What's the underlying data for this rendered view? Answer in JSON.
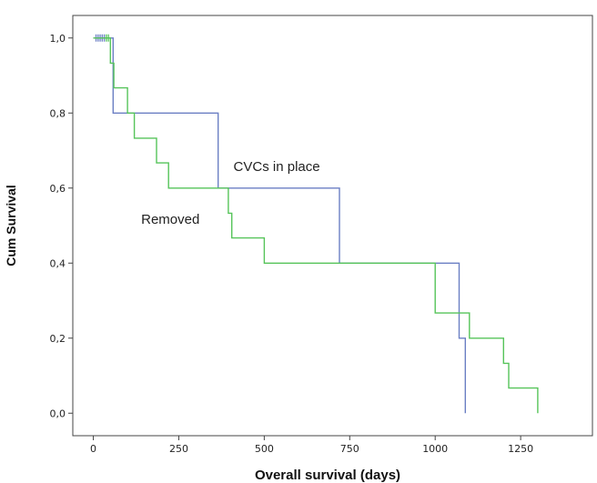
{
  "chart_data": {
    "type": "line",
    "xlabel": "Overall survival (days)",
    "ylabel": "Cum Survival",
    "xlim": [
      -60,
      1460
    ],
    "ylim": [
      -0.06,
      1.06
    ],
    "x_ticks": [
      0,
      250,
      500,
      750,
      1000,
      1250
    ],
    "x_tick_labels": [
      "0",
      "250",
      "500",
      "750",
      "1000",
      "1250"
    ],
    "y_ticks": [
      0.0,
      0.2,
      0.4,
      0.6,
      0.8,
      1.0
    ],
    "y_tick_labels": [
      "0,0",
      "0,2",
      "0,4",
      "0,6",
      "0,8",
      "1,0"
    ],
    "grid": false,
    "series": [
      {
        "name": "CVCs in place",
        "color": "#6b7fc4",
        "steps": [
          [
            0,
            1.0
          ],
          [
            58,
            1.0
          ],
          [
            58,
            0.8
          ],
          [
            365,
            0.8
          ],
          [
            365,
            0.6
          ],
          [
            720,
            0.6
          ],
          [
            720,
            0.4
          ],
          [
            1070,
            0.4
          ],
          [
            1070,
            0.2
          ],
          [
            1088,
            0.2
          ],
          [
            1088,
            0.0
          ]
        ],
        "censored_x": [
          8,
          14,
          20,
          26,
          32
        ]
      },
      {
        "name": "Removed",
        "color": "#56c45a",
        "steps": [
          [
            0,
            1.0
          ],
          [
            50,
            1.0
          ],
          [
            50,
            0.933
          ],
          [
            60,
            0.933
          ],
          [
            60,
            0.867
          ],
          [
            100,
            0.867
          ],
          [
            100,
            0.8
          ],
          [
            120,
            0.8
          ],
          [
            120,
            0.733
          ],
          [
            185,
            0.733
          ],
          [
            185,
            0.667
          ],
          [
            220,
            0.667
          ],
          [
            220,
            0.6
          ],
          [
            395,
            0.6
          ],
          [
            395,
            0.533
          ],
          [
            405,
            0.533
          ],
          [
            405,
            0.467
          ],
          [
            500,
            0.467
          ],
          [
            500,
            0.4
          ],
          [
            1000,
            0.4
          ],
          [
            1000,
            0.267
          ],
          [
            1100,
            0.267
          ],
          [
            1100,
            0.2
          ],
          [
            1200,
            0.2
          ],
          [
            1200,
            0.133
          ],
          [
            1215,
            0.133
          ],
          [
            1215,
            0.067
          ],
          [
            1300,
            0.067
          ],
          [
            1300,
            0.0
          ]
        ],
        "censored_x": [
          38,
          44
        ]
      }
    ],
    "annotations": [
      {
        "text": "CVCs in place",
        "x": 410,
        "y": 0.645
      },
      {
        "text": "Removed",
        "x": 140,
        "y": 0.505
      }
    ]
  }
}
